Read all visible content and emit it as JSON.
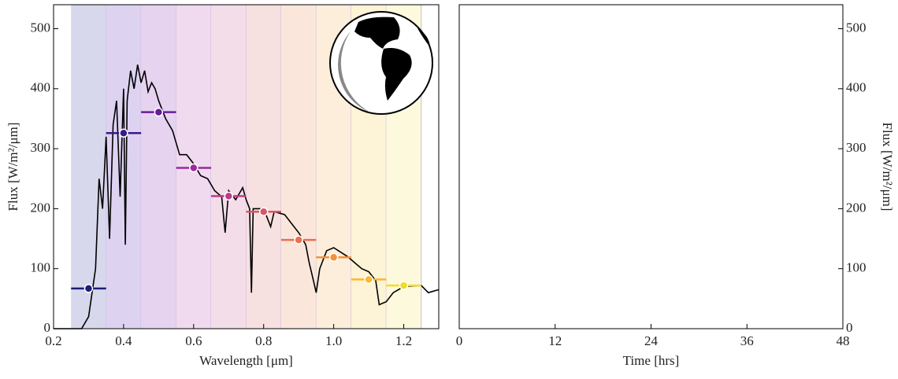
{
  "chart_data": [
    {
      "type": "spectrum",
      "xlabel": "Wavelength [μm]",
      "ylabel": "Flux [W/m²/μm]",
      "xlim": [
        0.2,
        1.3
      ],
      "ylim": [
        0,
        540
      ],
      "xticks": [
        0.2,
        0.4,
        0.6,
        0.8,
        {
          "value": 1,
          "label": "1.0"
        },
        1.2
      ],
      "yticks": [
        0,
        100,
        200,
        300,
        400,
        500
      ],
      "bands": [
        0.25,
        0.35,
        0.45,
        0.55,
        0.65,
        0.75,
        0.85,
        0.95,
        1.05,
        1.15,
        1.25
      ],
      "band_colors": [
        "#d8d8ec",
        "#ddd3f1",
        "#e6d3f0",
        "#efdaef",
        "#f3dde9",
        "#f7e0e0",
        "#fbe6dc",
        "#fdeedb",
        "#fdf3d6",
        "#fdf9dc"
      ],
      "series": [
        {
          "color": "#000000",
          "x": [
            0.2,
            0.28,
            0.3,
            0.32,
            0.33,
            0.34,
            0.35,
            0.36,
            0.37,
            0.38,
            0.39,
            0.4,
            0.405,
            0.41,
            0.42,
            0.43,
            0.44,
            0.45,
            0.46,
            0.47,
            0.48,
            0.49,
            0.5,
            0.52,
            0.54,
            0.56,
            0.58,
            0.6,
            0.62,
            0.64,
            0.66,
            0.68,
            0.69,
            0.7,
            0.72,
            0.74,
            0.75,
            0.76,
            0.765,
            0.77,
            0.8,
            0.82,
            0.83,
            0.86,
            0.88,
            0.9,
            0.92,
            0.93,
            0.94,
            0.95,
            0.96,
            0.98,
            1.0,
            1.04,
            1.06,
            1.08,
            1.1,
            1.12,
            1.13,
            1.15,
            1.17,
            1.2,
            1.25,
            1.27,
            1.3
          ],
          "values": [
            0,
            0,
            20,
            100,
            250,
            200,
            320,
            150,
            340,
            380,
            220,
            400,
            140,
            380,
            430,
            400,
            440,
            410,
            430,
            395,
            410,
            400,
            380,
            350,
            330,
            290,
            290,
            275,
            255,
            250,
            230,
            220,
            160,
            230,
            215,
            235,
            215,
            200,
            60,
            200,
            200,
            170,
            195,
            190,
            175,
            160,
            140,
            110,
            85,
            60,
            100,
            130,
            135,
            120,
            110,
            100,
            95,
            80,
            40,
            45,
            60,
            70,
            72,
            60,
            65
          ]
        },
        {
          "type": "scatter",
          "xerr": 0.05,
          "x": [
            0.3,
            0.4,
            0.5,
            0.6,
            0.7,
            0.8,
            0.9,
            1.0,
            1.1,
            1.2
          ],
          "values": [
            67,
            326,
            361,
            268,
            221,
            195,
            148,
            119,
            82,
            72
          ],
          "colors": [
            "#1c1c7a",
            "#3a1a8a",
            "#6a1a9a",
            "#9b2a9e",
            "#c03a8a",
            "#d9566a",
            "#ea6f4e",
            "#f5903a",
            "#fbb82e",
            "#f2dc26"
          ]
        }
      ]
    },
    {
      "type": "line",
      "xlabel": "Time [hrs]",
      "ylabel": "Flux [W/m²/μm]",
      "xlim": [
        0,
        48
      ],
      "ylim": [
        0,
        540
      ],
      "xticks": [
        0,
        12,
        24,
        36,
        48
      ],
      "yticks": [
        0,
        100,
        200,
        300,
        400,
        500
      ],
      "yaxis_side": "right"
    }
  ]
}
